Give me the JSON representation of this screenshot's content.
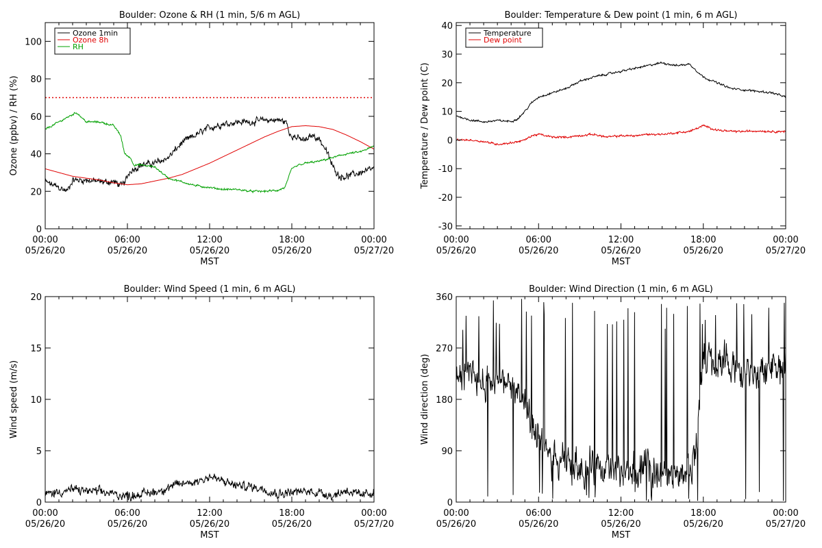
{
  "chart_data": [
    {
      "type": "line",
      "title": "Boulder: Ozone & RH (1 min, 5/6 m AGL)",
      "xlabel": "MST",
      "ylabel": "Ozone (ppbv) / RH (%)",
      "xlim": [
        0,
        24
      ],
      "ylim": [
        0,
        110
      ],
      "yticks": [
        0,
        20,
        40,
        60,
        80,
        100
      ],
      "xtick_times": [
        "00:00",
        "06:00",
        "12:00",
        "18:00",
        "00:00"
      ],
      "xtick_dates": [
        "05/26/20",
        "05/26/20",
        "05/26/20",
        "05/26/20",
        "05/27/20"
      ],
      "grid": false,
      "legend_position": "top-left",
      "reference_line": {
        "value": 70,
        "color": "#e00000",
        "style": "dotted"
      },
      "series": [
        {
          "name": "Ozone 1min",
          "color": "#000000",
          "noise": 2,
          "points": [
            [
              0,
              25
            ],
            [
              1,
              22
            ],
            [
              1.6,
              20
            ],
            [
              2,
              26
            ],
            [
              3,
              26
            ],
            [
              4,
              25
            ],
            [
              5,
              25
            ],
            [
              5.6,
              23
            ],
            [
              5.9,
              26
            ],
            [
              6.2,
              31
            ],
            [
              7,
              34
            ],
            [
              8,
              35
            ],
            [
              9,
              38
            ],
            [
              10,
              46
            ],
            [
              11,
              50
            ],
            [
              12,
              54
            ],
            [
              13,
              56
            ],
            [
              14,
              57
            ],
            [
              15,
              57
            ],
            [
              16,
              58
            ],
            [
              17,
              58
            ],
            [
              17.6,
              57
            ],
            [
              17.8,
              51
            ],
            [
              18.5,
              48
            ],
            [
              19,
              47
            ],
            [
              19.5,
              50
            ],
            [
              20,
              48
            ],
            [
              20.5,
              42
            ],
            [
              21,
              33
            ],
            [
              21.5,
              28
            ],
            [
              22,
              28
            ],
            [
              23,
              30
            ],
            [
              24,
              32
            ]
          ]
        },
        {
          "name": "Ozone 8h",
          "color": "#e00000",
          "noise": 0,
          "points": [
            [
              0,
              32
            ],
            [
              1,
              30
            ],
            [
              2,
              28
            ],
            [
              3,
              27
            ],
            [
              4,
              26
            ],
            [
              5,
              24.5
            ],
            [
              6,
              23.5
            ],
            [
              7,
              24
            ],
            [
              8,
              25.5
            ],
            [
              9,
              27
            ],
            [
              10,
              29
            ],
            [
              11,
              32
            ],
            [
              12,
              35
            ],
            [
              13,
              38.5
            ],
            [
              14,
              42
            ],
            [
              15,
              45.5
            ],
            [
              16,
              49
            ],
            [
              17,
              52
            ],
            [
              18,
              54.5
            ],
            [
              19,
              55
            ],
            [
              20,
              54.5
            ],
            [
              21,
              53
            ],
            [
              22,
              50
            ],
            [
              23,
              46.5
            ],
            [
              24,
              42.5
            ]
          ]
        },
        {
          "name": "RH",
          "color": "#00a000",
          "noise": 0.6,
          "points": [
            [
              0,
              53
            ],
            [
              1,
              57
            ],
            [
              2,
              61
            ],
            [
              2.3,
              62
            ],
            [
              3,
              57
            ],
            [
              4,
              57
            ],
            [
              5,
              55
            ],
            [
              5.5,
              50
            ],
            [
              5.8,
              40
            ],
            [
              6.2,
              38
            ],
            [
              6.5,
              34
            ],
            [
              7,
              34
            ],
            [
              8,
              33
            ],
            [
              9,
              27
            ],
            [
              10,
              25
            ],
            [
              11,
              23
            ],
            [
              12,
              22
            ],
            [
              13,
              21
            ],
            [
              14,
              21
            ],
            [
              15,
              20
            ],
            [
              16,
              20
            ],
            [
              17,
              20.5
            ],
            [
              17.5,
              22
            ],
            [
              18,
              32
            ],
            [
              18.5,
              34
            ],
            [
              19,
              35
            ],
            [
              20,
              36
            ],
            [
              21,
              38
            ],
            [
              22,
              40
            ],
            [
              23,
              41
            ],
            [
              24,
              44
            ]
          ]
        }
      ]
    },
    {
      "type": "line",
      "title": "Boulder: Temperature & Dew point (1 min, 6 m AGL)",
      "xlabel": "MST",
      "ylabel": "Temperature / Dew point (C)",
      "xlim": [
        0,
        24
      ],
      "ylim": [
        -31,
        41
      ],
      "yticks": [
        -30,
        -20,
        -10,
        0,
        10,
        20,
        30,
        40
      ],
      "xtick_times": [
        "00:00",
        "06:00",
        "12:00",
        "18:00",
        "00:00"
      ],
      "xtick_dates": [
        "05/26/20",
        "05/26/20",
        "05/26/20",
        "05/26/20",
        "05/27/20"
      ],
      "grid": false,
      "legend_position": "top-left",
      "series": [
        {
          "name": "Temperature",
          "color": "#000000",
          "noise": 0.4,
          "points": [
            [
              0,
              8.5
            ],
            [
              1,
              7
            ],
            [
              2,
              6.3
            ],
            [
              3,
              6.8
            ],
            [
              4,
              6.5
            ],
            [
              4.5,
              7.5
            ],
            [
              5,
              10
            ],
            [
              5.5,
              13
            ],
            [
              6,
              15
            ],
            [
              7,
              16.5
            ],
            [
              8,
              18
            ],
            [
              9,
              20.5
            ],
            [
              10,
              22
            ],
            [
              11,
              23
            ],
            [
              12,
              24
            ],
            [
              13,
              25
            ],
            [
              14,
              26
            ],
            [
              15,
              27
            ],
            [
              16,
              26
            ],
            [
              17,
              26.5
            ],
            [
              18,
              22
            ],
            [
              19,
              20
            ],
            [
              20,
              18
            ],
            [
              21,
              17.5
            ],
            [
              22,
              17
            ],
            [
              23,
              16.5
            ],
            [
              24,
              15
            ]
          ]
        },
        {
          "name": "Dew point",
          "color": "#e00000",
          "noise": 0.4,
          "points": [
            [
              0,
              0
            ],
            [
              1,
              0
            ],
            [
              2,
              -0.5
            ],
            [
              3,
              -1.5
            ],
            [
              4,
              -1
            ],
            [
              5,
              0
            ],
            [
              5.5,
              1.5
            ],
            [
              6,
              2
            ],
            [
              7,
              1
            ],
            [
              8,
              1
            ],
            [
              9,
              1.5
            ],
            [
              10,
              2
            ],
            [
              11,
              1
            ],
            [
              12,
              1.5
            ],
            [
              13,
              1.5
            ],
            [
              14,
              2
            ],
            [
              15,
              2
            ],
            [
              16,
              2.5
            ],
            [
              17,
              3
            ],
            [
              17.5,
              4
            ],
            [
              18,
              5
            ],
            [
              19,
              3.5
            ],
            [
              20,
              3
            ],
            [
              21,
              3
            ],
            [
              22,
              3.2
            ],
            [
              23,
              3
            ],
            [
              24,
              3
            ]
          ]
        }
      ]
    },
    {
      "type": "line",
      "title": "Boulder: Wind Speed (1 min, 6 m AGL)",
      "xlabel": "MST",
      "ylabel": "Wind speed (m/s)",
      "xlim": [
        0,
        24
      ],
      "ylim": [
        0,
        20
      ],
      "yticks": [
        0,
        5,
        10,
        15,
        20
      ],
      "xtick_times": [
        "00:00",
        "06:00",
        "12:00",
        "18:00",
        "00:00"
      ],
      "xtick_dates": [
        "05/26/20",
        "05/26/20",
        "05/26/20",
        "05/26/20",
        "05/27/20"
      ],
      "grid": false,
      "series": [
        {
          "name": "",
          "color": "#000000",
          "noise": 0.5,
          "points": [
            [
              0,
              0.8
            ],
            [
              2,
              1.2
            ],
            [
              4,
              1
            ],
            [
              6,
              0.6
            ],
            [
              8,
              1
            ],
            [
              9,
              1.4
            ],
            [
              10,
              1.8
            ],
            [
              11,
              2
            ],
            [
              12,
              2.5
            ],
            [
              13,
              2
            ],
            [
              14,
              1.6
            ],
            [
              15,
              1.5
            ],
            [
              16,
              1.3
            ],
            [
              17,
              0.8
            ],
            [
              18,
              1
            ],
            [
              19,
              1
            ],
            [
              20,
              1
            ],
            [
              21,
              0.6
            ],
            [
              22,
              1.2
            ],
            [
              23,
              0.6
            ],
            [
              24,
              1
            ]
          ]
        }
      ]
    },
    {
      "type": "line",
      "title": "Boulder: Wind Direction (1 min, 6 m AGL)",
      "xlabel": "MST",
      "ylabel": "Wind direction (deg)",
      "xlim": [
        0,
        24
      ],
      "ylim": [
        0,
        360
      ],
      "yticks": [
        0,
        90,
        180,
        270,
        360
      ],
      "xtick_times": [
        "00:00",
        "06:00",
        "12:00",
        "18:00",
        "00:00"
      ],
      "xtick_dates": [
        "05/26/20",
        "05/26/20",
        "05/26/20",
        "05/26/20",
        "05/27/20"
      ],
      "grid": false,
      "series": [
        {
          "name": "",
          "color": "#000000",
          "noise": 35,
          "points": [
            [
              0,
              210
            ],
            [
              1,
              230
            ],
            [
              2,
              215
            ],
            [
              3,
              220
            ],
            [
              4,
              210
            ],
            [
              5,
              160
            ],
            [
              6,
              110
            ],
            [
              7,
              70
            ],
            [
              8,
              60
            ],
            [
              9,
              55
            ],
            [
              10,
              60
            ],
            [
              11,
              50
            ],
            [
              12,
              55
            ],
            [
              13,
              50
            ],
            [
              14,
              55
            ],
            [
              15,
              50
            ],
            [
              16,
              55
            ],
            [
              17,
              60
            ],
            [
              17.5,
              100
            ],
            [
              18,
              245
            ],
            [
              19,
              240
            ],
            [
              20,
              235
            ],
            [
              21,
              230
            ],
            [
              22,
              225
            ],
            [
              23,
              240
            ],
            [
              24,
              230
            ]
          ]
        }
      ]
    }
  ]
}
